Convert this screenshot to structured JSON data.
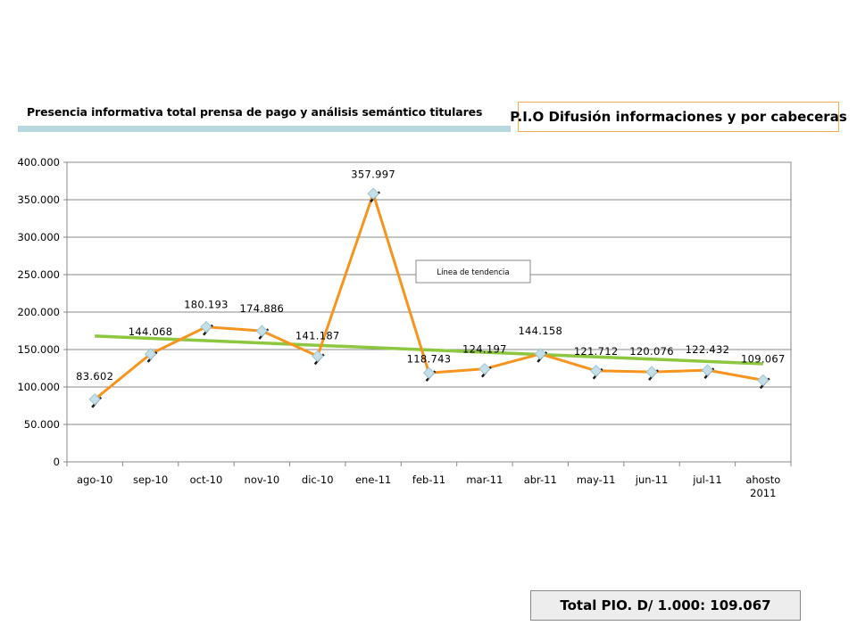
{
  "header": {
    "title": "Presencia informativa total prensa de pago y análisis semántico titulares"
  },
  "pio_box": {
    "label": "P.I.O Difusión informaciones y por cabeceras"
  },
  "total_box": {
    "label": "Total PIO. D/ 1.000: 109.067"
  },
  "chart_data": {
    "type": "line",
    "categories": [
      "ago-10",
      "sep-10",
      "oct-10",
      "nov-10",
      "dic-10",
      "ene-11",
      "feb-11",
      "mar-11",
      "abr-11",
      "may-11",
      "jun-11",
      "jul-11",
      "ahosto 2011"
    ],
    "y_tick_labels": [
      "0",
      "50.000",
      "100.000",
      "150.000",
      "200.000",
      "250.000",
      "300.000",
      "350.000",
      "400.000"
    ],
    "ylim": [
      0,
      400000
    ],
    "series": [
      {
        "values": [
          83602,
          144068,
          180193,
          174886,
          141187,
          357997,
          118743,
          124197,
          144158,
          121712,
          120076,
          122432,
          109067
        ],
        "data_labels": [
          "83.602",
          "144.068",
          "180.193",
          "174.886",
          "141.187",
          "357.997",
          "118.743",
          "124.197",
          "144.158",
          "121.712",
          "120.076",
          "122.432",
          "109.067"
        ],
        "color": "#f7941d"
      }
    ],
    "trendline": {
      "label": "Línea de tendencia",
      "start": 168000,
      "end": 131000,
      "color": "#8dc63f"
    },
    "grid": true,
    "marker_color": "#c5dfe8"
  }
}
